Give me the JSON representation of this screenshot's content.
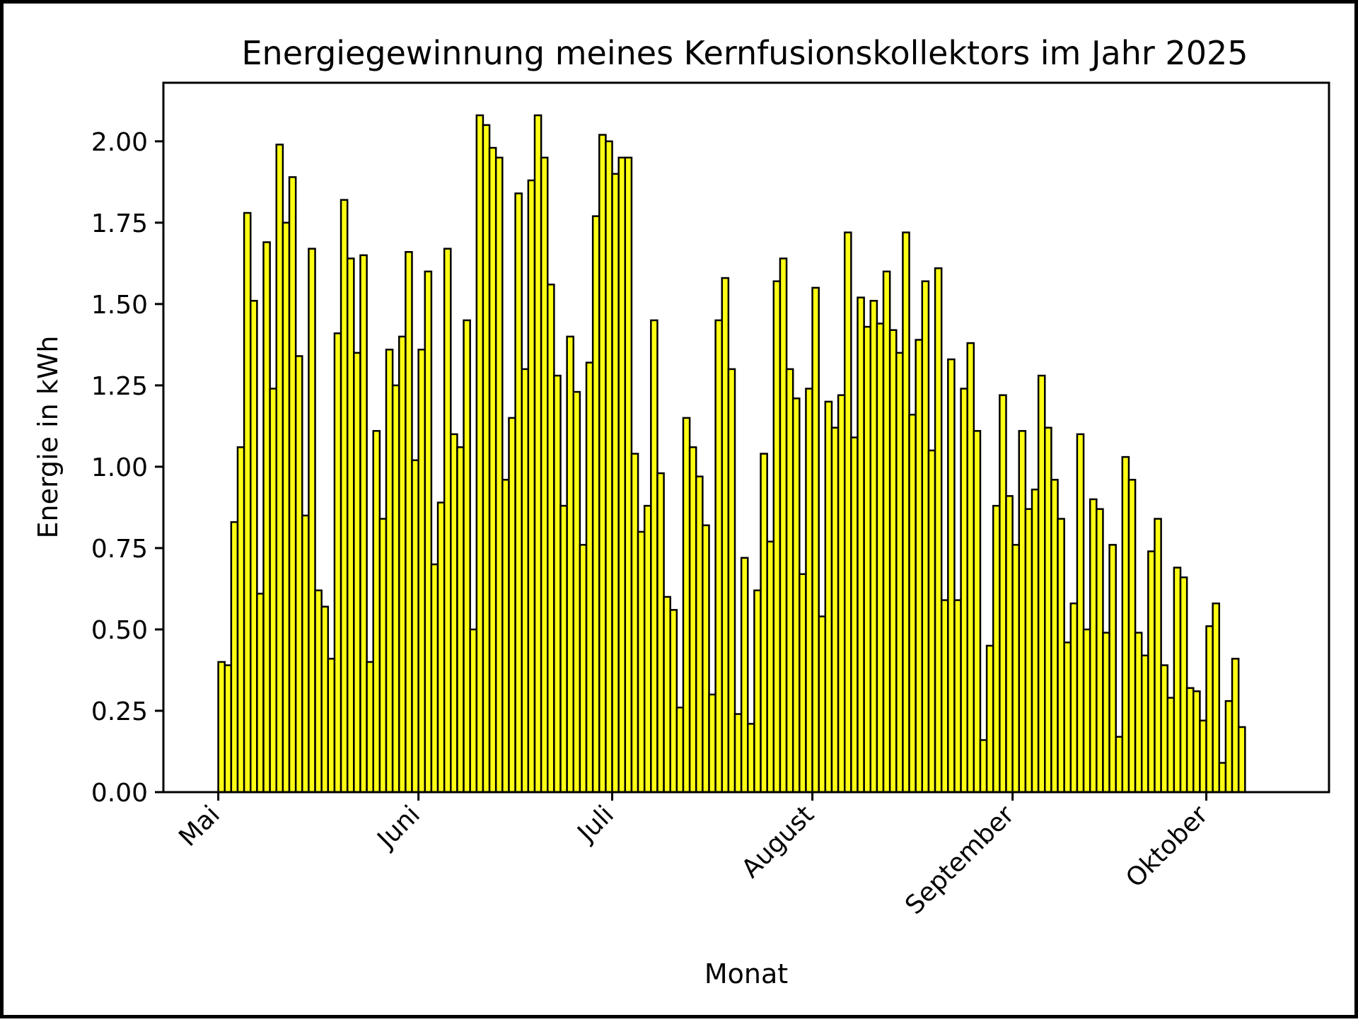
{
  "chart_data": {
    "type": "bar",
    "title": "Energiegewinnung meines Kernfusionskollektors im Jahr 2025",
    "xlabel": "Monat",
    "ylabel": "Energie in kWh",
    "ylim": [
      0,
      2.18
    ],
    "x_range_days": [
      -8.5,
      172
    ],
    "yticks": [
      {
        "value": 0.0,
        "label": "0.00"
      },
      {
        "value": 0.25,
        "label": "0.25"
      },
      {
        "value": 0.5,
        "label": "0.50"
      },
      {
        "value": 0.75,
        "label": "0.75"
      },
      {
        "value": 1.0,
        "label": "1.00"
      },
      {
        "value": 1.25,
        "label": "1.25"
      },
      {
        "value": 1.5,
        "label": "1.50"
      },
      {
        "value": 1.75,
        "label": "1.75"
      },
      {
        "value": 2.0,
        "label": "2.00"
      }
    ],
    "xticks": [
      {
        "day": 0,
        "label": "Mai"
      },
      {
        "day": 31,
        "label": "Juni"
      },
      {
        "day": 61,
        "label": "Juli"
      },
      {
        "day": 92,
        "label": "August"
      },
      {
        "day": 123,
        "label": "September"
      },
      {
        "day": 153,
        "label": "Oktober"
      }
    ],
    "start_date": "2025-05-01",
    "bar_color": "#ffff14",
    "edge_color": "#000000",
    "values": [
      0.4,
      0.39,
      0.83,
      1.06,
      1.78,
      1.51,
      0.61,
      1.69,
      1.24,
      1.99,
      1.75,
      1.89,
      1.34,
      0.85,
      1.67,
      0.62,
      0.57,
      0.41,
      1.41,
      1.82,
      1.64,
      1.35,
      1.65,
      0.4,
      1.11,
      0.84,
      1.36,
      1.25,
      1.4,
      1.66,
      1.02,
      1.36,
      1.6,
      0.7,
      0.89,
      1.67,
      1.1,
      1.06,
      1.45,
      0.5,
      2.08,
      2.05,
      1.98,
      1.95,
      0.96,
      1.15,
      1.84,
      1.3,
      1.88,
      2.08,
      1.95,
      1.56,
      1.28,
      0.88,
      1.4,
      1.23,
      0.76,
      1.32,
      1.77,
      2.02,
      2.0,
      1.9,
      1.95,
      1.95,
      1.04,
      0.8,
      0.88,
      1.45,
      0.98,
      0.6,
      0.56,
      0.26,
      1.15,
      1.06,
      0.97,
      0.82,
      0.3,
      1.45,
      1.58,
      1.3,
      0.24,
      0.72,
      0.21,
      0.62,
      1.04,
      0.77,
      1.57,
      1.64,
      1.3,
      1.21,
      0.67,
      1.24,
      1.55,
      0.54,
      1.2,
      1.12,
      1.22,
      1.72,
      1.09,
      1.52,
      1.43,
      1.51,
      1.44,
      1.6,
      1.42,
      1.35,
      1.72,
      1.16,
      1.39,
      1.57,
      1.05,
      1.61,
      0.59,
      1.33,
      0.59,
      1.24,
      1.38,
      1.11,
      0.16,
      0.45,
      0.88,
      1.22,
      0.91,
      0.76,
      1.11,
      0.87,
      0.93,
      1.28,
      1.12,
      0.96,
      0.84,
      0.46,
      0.58,
      1.1,
      0.5,
      0.9,
      0.87,
      0.49,
      0.76,
      0.17,
      1.03,
      0.96,
      0.49,
      0.42,
      0.74,
      0.84,
      0.39,
      0.29,
      0.69,
      0.66,
      0.32,
      0.31,
      0.22,
      0.51,
      0.58,
      0.09,
      0.28,
      0.41,
      0.2
    ]
  }
}
